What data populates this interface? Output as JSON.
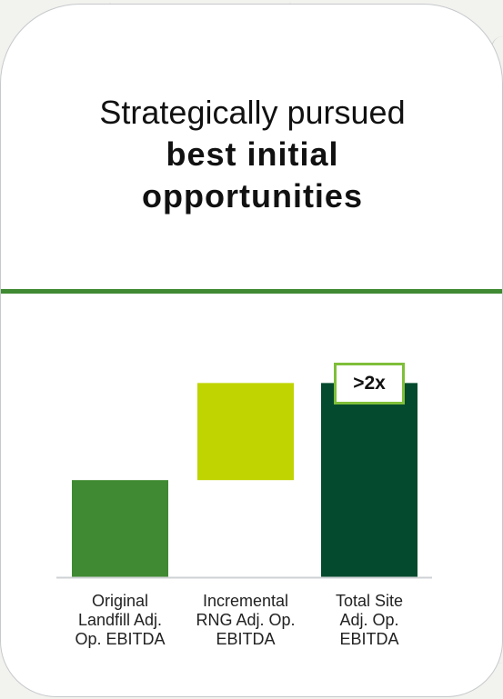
{
  "title": {
    "line1": "Strategically pursued",
    "bold": "best initial opportunities"
  },
  "colors": {
    "divider": "#3f8a32",
    "bar_original": "#3f8a32",
    "bar_incremental": "#bfd400",
    "bar_total": "#044a2e",
    "badge_border": "#7fbf3a"
  },
  "chart_data": {
    "type": "bar",
    "subtype": "waterfall",
    "categories": [
      "Original Landfill Adj. Op. EBITDA",
      "Incremental RNG Adj. Op. EBITDA",
      "Total Site Adj. Op. EBITDA"
    ],
    "category_lines": [
      [
        "Original",
        "Landfill Adj.",
        "Op. EBITDA"
      ],
      [
        "Incremental",
        "RNG Adj. Op.",
        "EBITDA"
      ],
      [
        "Total Site",
        "Adj. Op.",
        "EBITDA"
      ]
    ],
    "values": [
      1.0,
      1.0,
      2.0
    ],
    "bases": [
      0,
      1.0,
      0
    ],
    "ylim": [
      0,
      2.2
    ],
    "annotation": ">2x",
    "grid": false,
    "legend": "none"
  }
}
